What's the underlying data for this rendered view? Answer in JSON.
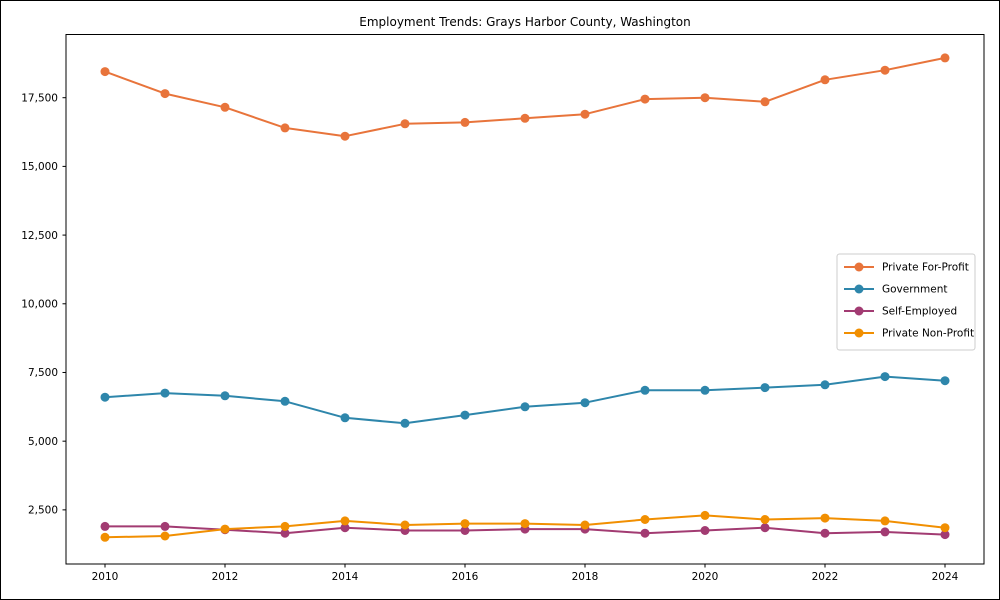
{
  "chart_data": {
    "type": "line",
    "title": "Employment Trends: Grays Harbor County, Washington",
    "x": [
      2010,
      2011,
      2012,
      2013,
      2014,
      2015,
      2016,
      2017,
      2018,
      2019,
      2020,
      2021,
      2022,
      2023,
      2024
    ],
    "xtick_labels": [
      "2010",
      "2012",
      "2014",
      "2016",
      "2018",
      "2020",
      "2022",
      "2024"
    ],
    "xtick_values": [
      2010,
      2012,
      2014,
      2016,
      2018,
      2020,
      2022,
      2024
    ],
    "ytick_values": [
      2500,
      5000,
      7500,
      10000,
      12500,
      15000,
      17500
    ],
    "ytick_labels": [
      "2,500",
      "5,000",
      "7,500",
      "10,000",
      "12,500",
      "15,000",
      "17,500"
    ],
    "xlim": [
      2009.35,
      2024.65
    ],
    "ylim": [
      530,
      19800
    ],
    "grid": false,
    "legend_position": "right",
    "series": [
      {
        "name": "Private For-Profit",
        "color": "#E8743B",
        "values": [
          18450,
          17650,
          17150,
          16400,
          16100,
          16550,
          16600,
          16750,
          16900,
          17450,
          17500,
          17350,
          18150,
          18500,
          18950
        ]
      },
      {
        "name": "Government",
        "color": "#2E86AB",
        "values": [
          6600,
          6750,
          6650,
          6450,
          5850,
          5650,
          5950,
          6250,
          6400,
          6850,
          6850,
          6950,
          7050,
          7350,
          7200
        ]
      },
      {
        "name": "Self-Employed",
        "color": "#A23B72",
        "values": [
          1900,
          1900,
          1780,
          1650,
          1850,
          1750,
          1750,
          1800,
          1800,
          1650,
          1750,
          1850,
          1650,
          1700,
          1600
        ]
      },
      {
        "name": "Private Non-Profit",
        "color": "#F18F01",
        "values": [
          1500,
          1550,
          1800,
          1900,
          2100,
          1950,
          2000,
          2000,
          1950,
          2150,
          2300,
          2150,
          2200,
          2100,
          1850
        ]
      }
    ]
  },
  "colors": {
    "axis": "#000000",
    "legend_border": "#cccccc",
    "background": "#ffffff"
  }
}
